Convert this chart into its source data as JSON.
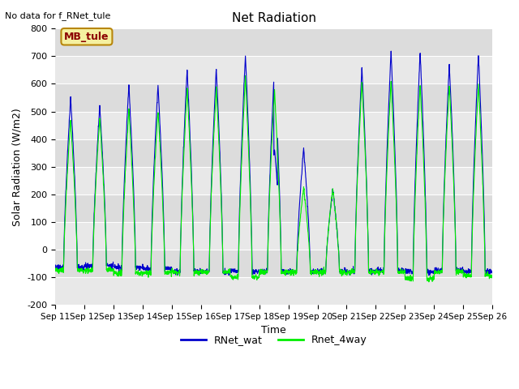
{
  "title": "Net Radiation",
  "ylabel": "Solar Radiation (W/m2)",
  "xlabel": "Time",
  "ylim": [
    -200,
    800
  ],
  "yticks": [
    -200,
    -100,
    0,
    100,
    200,
    300,
    400,
    500,
    600,
    700,
    800
  ],
  "no_data_text": "No data for f_RNet_tule",
  "mb_tule_label": "MB_tule",
  "legend_entries": [
    "RNet_wat",
    "Rnet_4way"
  ],
  "line_colors_blue": "#0000cc",
  "line_colors_green": "#00ee00",
  "bg_color": "#dcdcdc",
  "stripe_color": "#e8e8e8",
  "fig_bg": "#ffffff",
  "xtick_labels": [
    "Sep 11",
    "Sep 12",
    "Sep 13",
    "Sep 14",
    "Sep 15",
    "Sep 16",
    "Sep 17",
    "Sep 18",
    "Sep 19",
    "Sep 20",
    "Sep 21",
    "Sep 22",
    "Sep 23",
    "Sep 24",
    "Sep 25",
    "Sep 26"
  ],
  "num_days": 15,
  "day_peaks_b": [
    550,
    520,
    595,
    595,
    655,
    655,
    705,
    665,
    365,
    220,
    660,
    715,
    715,
    670,
    705
  ],
  "day_peaks_g": [
    470,
    480,
    505,
    505,
    585,
    585,
    625,
    575,
    225,
    220,
    610,
    610,
    600,
    600,
    600
  ],
  "night_b": [
    -65,
    -60,
    -65,
    -70,
    -80,
    -80,
    -80,
    -80,
    -80,
    -80,
    -80,
    -75,
    -80,
    -75,
    -80
  ],
  "night_g": [
    -75,
    -75,
    -85,
    -85,
    -82,
    -82,
    -100,
    -82,
    -82,
    -82,
    -82,
    -80,
    -105,
    -82,
    -95
  ],
  "day2_peaks_b": [
    730,
    700
  ],
  "day2_peaks_g": [
    620,
    600
  ],
  "night2_b": [
    -80,
    -95
  ],
  "night2_g": [
    -82,
    -90
  ]
}
